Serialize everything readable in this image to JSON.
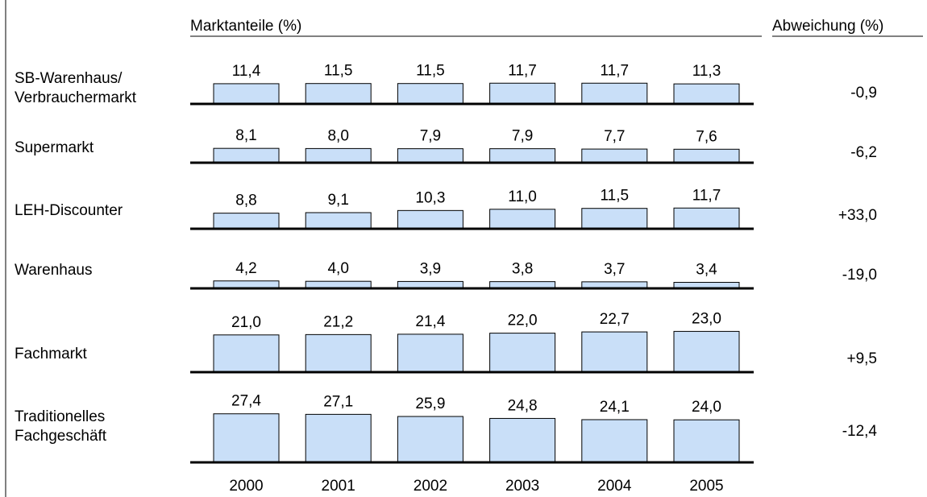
{
  "chart_data": {
    "type": "bar",
    "title": "Marktanteile (%)",
    "change_title": "Abweichung (%)",
    "categories": [
      "2000",
      "2001",
      "2002",
      "2003",
      "2004",
      "2005"
    ],
    "series": [
      {
        "name": "SB-Warenhaus/\nVerbrauchermarkt",
        "color": "#c9dff8",
        "values": [
          11.4,
          11.5,
          11.5,
          11.7,
          11.7,
          11.3
        ],
        "value_labels": [
          "11,4",
          "11,5",
          "11,5",
          "11,7",
          "11,7",
          "11,3"
        ],
        "change": {
          "value": -0.9,
          "label": "-0,9"
        }
      },
      {
        "name": "Supermarkt",
        "color": "#c9dff8",
        "values": [
          8.1,
          8.0,
          7.9,
          7.9,
          7.7,
          7.6
        ],
        "value_labels": [
          "8,1",
          "8,0",
          "7,9",
          "7,9",
          "7,7",
          "7,6"
        ],
        "change": {
          "value": -6.2,
          "label": "-6,2"
        }
      },
      {
        "name": "LEH-Discounter",
        "color": "#c9dff8",
        "values": [
          8.8,
          9.1,
          10.3,
          11.0,
          11.5,
          11.7
        ],
        "value_labels": [
          "8,8",
          "9,1",
          "10,3",
          "11,0",
          "11,5",
          "11,7"
        ],
        "change": {
          "value": 33.0,
          "label": "+33,0"
        }
      },
      {
        "name": "Warenhaus",
        "color": "#c9dff8",
        "values": [
          4.2,
          4.0,
          3.9,
          3.8,
          3.7,
          3.4
        ],
        "value_labels": [
          "4,2",
          "4,0",
          "3,9",
          "3,8",
          "3,7",
          "3,4"
        ],
        "change": {
          "value": -19.0,
          "label": "-19,0"
        }
      },
      {
        "name": "Fachmarkt",
        "color": "#c9dff8",
        "values": [
          21.0,
          21.2,
          21.4,
          22.0,
          22.7,
          23.0
        ],
        "value_labels": [
          "21,0",
          "21,2",
          "21,4",
          "22,0",
          "22,7",
          "23,0"
        ],
        "change": {
          "value": 9.5,
          "label": "+9,5"
        }
      },
      {
        "name": "Traditionelles\nFachgeschäft",
        "color": "#c9dff8",
        "values": [
          27.4,
          27.1,
          25.9,
          24.8,
          24.1,
          24.0
        ],
        "value_labels": [
          "27,4",
          "27,1",
          "25,9",
          "24,8",
          "24,1",
          "24,0"
        ],
        "change": {
          "value": -12.4,
          "label": "-12,4"
        }
      }
    ]
  }
}
